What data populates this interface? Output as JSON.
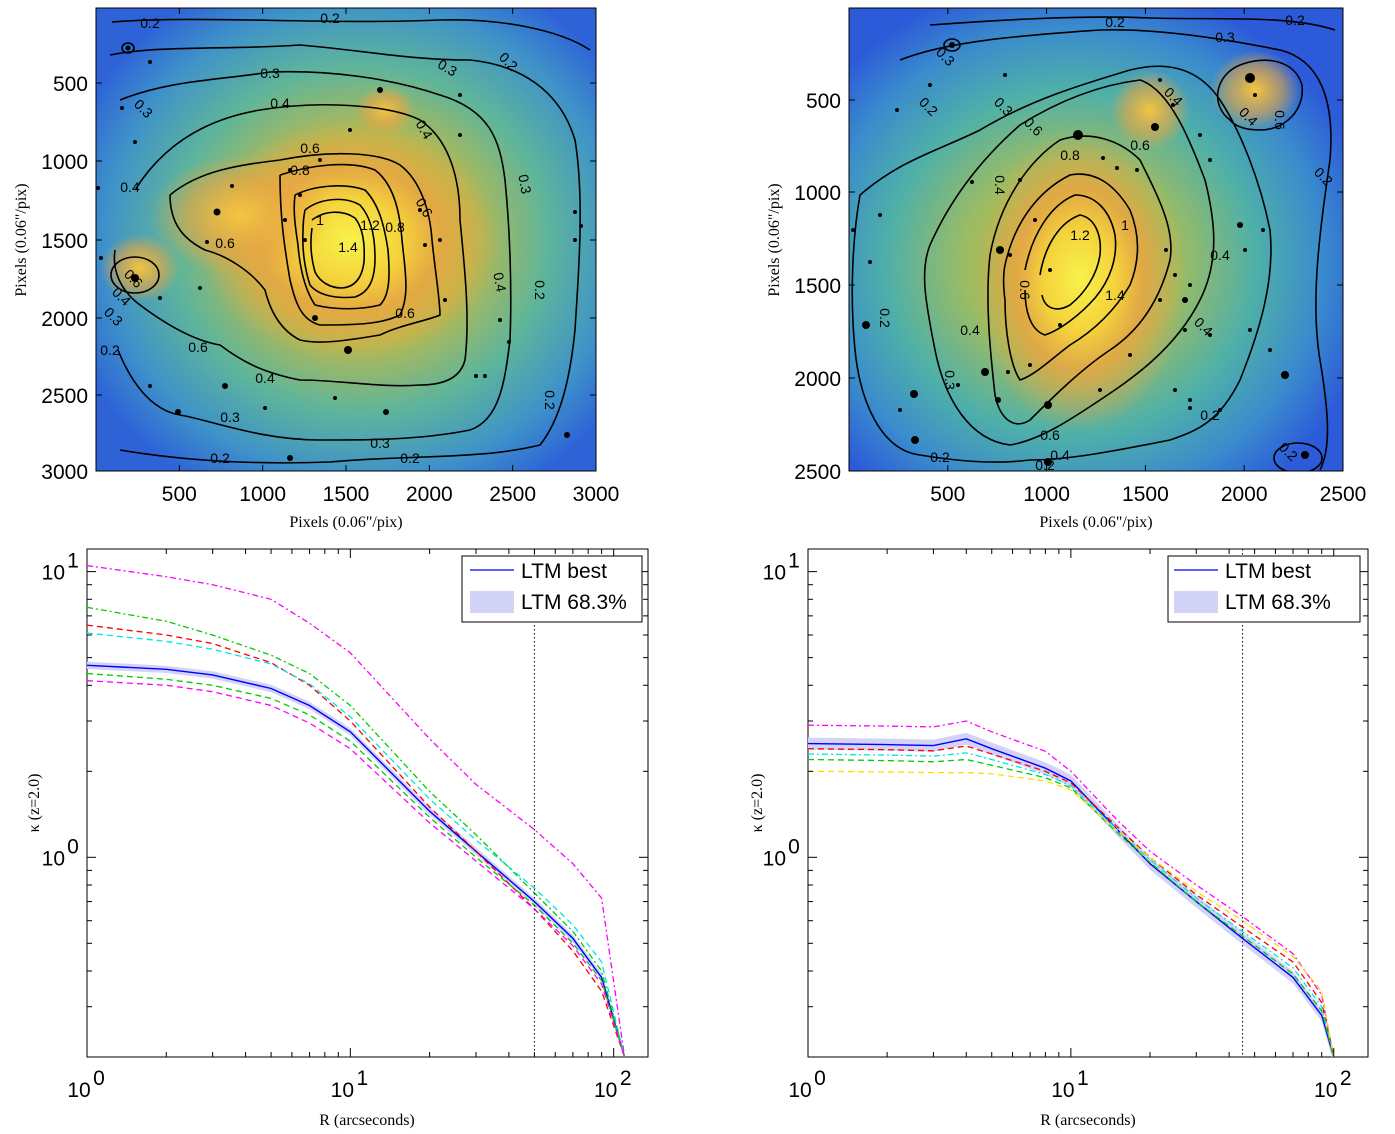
{
  "chart_data": [
    {
      "type": "heatmap",
      "title": "",
      "xlabel": "Pixels (0.06\"/pix)",
      "ylabel": "Pixels (0.06\"/pix)",
      "xlim": [
        0,
        3000
      ],
      "ylim": [
        0,
        3000
      ],
      "xticks": [
        "500",
        "1000",
        "1500",
        "2000",
        "2500",
        "3000"
      ],
      "yticks": [
        "500",
        "1000",
        "1500",
        "2000",
        "2500",
        "3000"
      ],
      "contour_levels": [
        "0.2",
        "0.3",
        "0.4",
        "0.6",
        "0.8",
        "1",
        "1.2",
        "1.4"
      ],
      "peak": {
        "x": 1480,
        "y": 1500
      }
    },
    {
      "type": "heatmap",
      "title": "",
      "xlabel": "Pixels (0.06\"/pix)",
      "ylabel": "Pixels (0.06\"/pix)",
      "xlim": [
        0,
        2500
      ],
      "ylim": [
        0,
        2500
      ],
      "xticks": [
        "500",
        "1000",
        "1500",
        "2000",
        "2500"
      ],
      "yticks": [
        "500",
        "1000",
        "1500",
        "2000",
        "2500"
      ],
      "contour_levels": [
        "0.2",
        "0.3",
        "0.4",
        "0.6",
        "0.8",
        "1",
        "1.2",
        "1.4"
      ],
      "peak": {
        "x": 1150,
        "y": 1420
      }
    },
    {
      "type": "line",
      "xlabel": "R (arcseconds)",
      "ylabel": "κ (z=2.0)",
      "xscale": "log",
      "yscale": "log",
      "xlim": [
        1,
        135
      ],
      "ylim": [
        0.2,
        12
      ],
      "vline": 50,
      "legend": {
        "best": "LTM best",
        "band": "LTM 68.3%",
        "placement": "top-right"
      },
      "series": [
        {
          "x": [
            1,
            2,
            3,
            5,
            7,
            10,
            20,
            30,
            50,
            70,
            90,
            110
          ],
          "y": [
            4.7,
            4.55,
            4.35,
            3.9,
            3.4,
            2.75,
            1.45,
            1.05,
            0.7,
            0.52,
            0.38,
            0.2
          ]
        },
        {
          "x": [
            1,
            2,
            3,
            5,
            7,
            10,
            20,
            30,
            50,
            70,
            90,
            110
          ],
          "y": [
            10.5,
            9.6,
            9.0,
            8.0,
            6.6,
            5.2,
            2.6,
            1.8,
            1.25,
            0.95,
            0.72,
            0.2
          ]
        },
        {
          "x": [
            1,
            2,
            3,
            5,
            7,
            10,
            20,
            30,
            50,
            70,
            90,
            110
          ],
          "y": [
            6.5,
            6.0,
            5.6,
            4.8,
            4.0,
            3.0,
            1.5,
            1.05,
            0.66,
            0.47,
            0.34,
            0.2
          ]
        },
        {
          "x": [
            1,
            2,
            3,
            5,
            7,
            10,
            20,
            30,
            50,
            70,
            90,
            110
          ],
          "y": [
            7.5,
            6.7,
            6.0,
            5.1,
            4.4,
            3.4,
            1.7,
            1.2,
            0.75,
            0.55,
            0.4,
            0.2
          ]
        },
        {
          "x": [
            1,
            2,
            3,
            5,
            7,
            10,
            20,
            30,
            50,
            70,
            90,
            110
          ],
          "y": [
            6.1,
            5.7,
            5.35,
            4.75,
            4.05,
            3.1,
            1.6,
            1.15,
            0.78,
            0.58,
            0.43,
            0.2
          ]
        },
        {
          "x": [
            1,
            2,
            3,
            5,
            7,
            10,
            20,
            30,
            50,
            70,
            90,
            110
          ],
          "y": [
            4.4,
            4.2,
            4.0,
            3.6,
            3.15,
            2.55,
            1.38,
            1.0,
            0.68,
            0.5,
            0.37,
            0.2
          ]
        },
        {
          "x": [
            1,
            2,
            3,
            5,
            7,
            10,
            20,
            30,
            50,
            70,
            90,
            110
          ],
          "y": [
            4.15,
            4.0,
            3.8,
            3.4,
            2.95,
            2.4,
            1.32,
            0.97,
            0.66,
            0.49,
            0.36,
            0.2
          ]
        }
      ]
    },
    {
      "type": "line",
      "xlabel": "R (arcseconds)",
      "ylabel": "κ (z=2.0)",
      "xscale": "log",
      "yscale": "log",
      "xlim": [
        1,
        135
      ],
      "ylim": [
        0.2,
        12
      ],
      "vline": 45,
      "legend": {
        "best": "LTM best",
        "band": "LTM 68.3%",
        "placement": "top-right"
      },
      "series": [
        {
          "x": [
            1,
            2,
            3,
            4,
            5,
            8,
            10,
            15,
            20,
            30,
            45,
            70,
            90,
            100
          ],
          "y": [
            2.5,
            2.48,
            2.46,
            2.6,
            2.4,
            2.05,
            1.85,
            1.25,
            0.95,
            0.7,
            0.52,
            0.38,
            0.28,
            0.2
          ]
        },
        {
          "x": [
            1,
            2,
            3,
            4,
            5,
            8,
            10,
            15,
            20,
            30,
            45,
            70,
            90,
            100
          ],
          "y": [
            2.9,
            2.88,
            2.86,
            3.0,
            2.75,
            2.35,
            2.0,
            1.35,
            1.05,
            0.8,
            0.62,
            0.46,
            0.33,
            0.2
          ]
        },
        {
          "x": [
            1,
            2,
            3,
            4,
            5,
            8,
            10,
            15,
            20,
            30,
            45,
            70,
            90,
            100
          ],
          "y": [
            2.4,
            2.38,
            2.36,
            2.45,
            2.3,
            2.0,
            1.82,
            1.28,
            1.0,
            0.74,
            0.57,
            0.43,
            0.31,
            0.2
          ]
        },
        {
          "x": [
            1,
            2,
            3,
            4,
            5,
            8,
            10,
            15,
            20,
            30,
            45,
            70,
            90,
            100
          ],
          "y": [
            2.3,
            2.28,
            2.26,
            2.32,
            2.2,
            1.95,
            1.78,
            1.25,
            0.98,
            0.72,
            0.55,
            0.41,
            0.3,
            0.2
          ]
        },
        {
          "x": [
            1,
            2,
            3,
            4,
            5,
            8,
            10,
            15,
            20,
            30,
            45,
            70,
            90,
            100
          ],
          "y": [
            2.2,
            2.18,
            2.16,
            2.2,
            2.1,
            1.9,
            1.75,
            1.22,
            0.96,
            0.7,
            0.53,
            0.39,
            0.29,
            0.2
          ]
        },
        {
          "x": [
            1,
            2,
            3,
            4,
            5,
            8,
            10,
            15,
            20,
            30,
            45,
            70,
            90,
            100
          ],
          "y": [
            2.0,
            1.99,
            1.98,
            1.98,
            1.96,
            1.85,
            1.72,
            1.24,
            1.0,
            0.76,
            0.6,
            0.45,
            0.34,
            0.2
          ]
        }
      ]
    }
  ]
}
